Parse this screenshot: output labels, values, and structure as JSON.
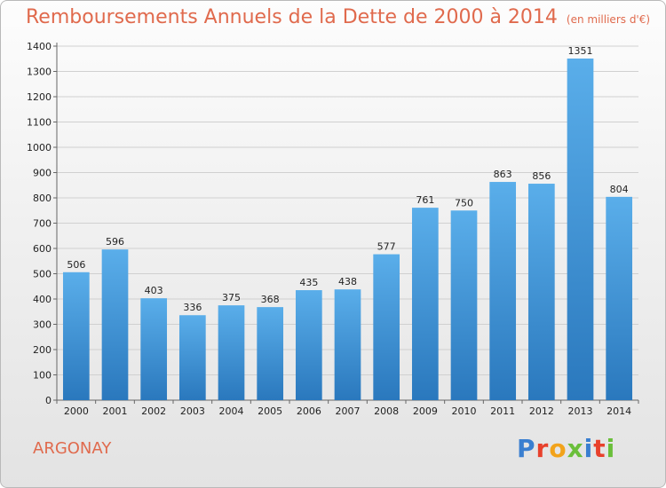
{
  "header": {
    "title": "Remboursements Annuels de la Dette de 2000 à 2014",
    "unit": "(en milliers d'€)"
  },
  "footer": {
    "city": "ARGONAY",
    "logo_text": "Proxiti",
    "logo_colors": [
      "#3a7fd0",
      "#e8412c",
      "#f2a31b",
      "#6abf3a",
      "#3a7fd0",
      "#e8412c",
      "#6abf3a"
    ]
  },
  "chart_data": {
    "type": "bar",
    "title": "Remboursements Annuels de la Dette de 2000 à 2014",
    "subtitle": "(en milliers d'€)",
    "xlabel": "",
    "ylabel": "",
    "categories": [
      "2000",
      "2001",
      "2002",
      "2003",
      "2004",
      "2005",
      "2006",
      "2007",
      "2008",
      "2009",
      "2010",
      "2011",
      "2012",
      "2013",
      "2014"
    ],
    "values": [
      506,
      596,
      403,
      336,
      375,
      368,
      435,
      438,
      577,
      761,
      750,
      863,
      856,
      1351,
      804
    ],
    "value_labels": [
      "506",
      "596",
      "403",
      "336",
      "375",
      "368",
      "435",
      "438",
      "577",
      "761",
      "750",
      "863",
      "856",
      "1351",
      "804"
    ],
    "ylim": [
      0,
      1400
    ],
    "yticks": [
      0,
      100,
      200,
      300,
      400,
      500,
      600,
      700,
      800,
      900,
      1000,
      1100,
      1200,
      1300,
      1400
    ],
    "ytick_labels": [
      "0",
      "100",
      "200",
      "300",
      "400",
      "500",
      "600",
      "700",
      "800",
      "900",
      "1000",
      "1100",
      "1200",
      "1300",
      "1400"
    ],
    "grid": true,
    "bar_color_top": "#5aaeea",
    "bar_color_bottom": "#2a78bd"
  }
}
